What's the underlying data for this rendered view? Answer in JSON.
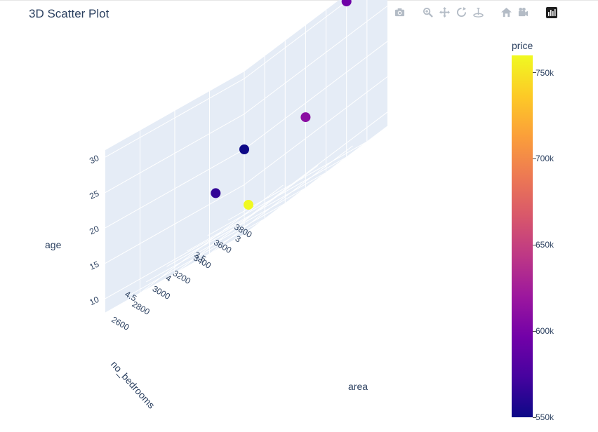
{
  "page": {
    "title": "3D Scatter Plot"
  },
  "modebar": {
    "buttons": [
      "camera-icon",
      "zoom-icon",
      "pan-icon",
      "orbit-rotation-icon",
      "turntable-rotation-icon",
      "reset-camera-icon",
      "camera-view-icon"
    ],
    "logo": "plotly-logo-icon"
  },
  "chart_data": {
    "type": "scatter3d",
    "title": "3D Scatter Plot",
    "x": {
      "label": "area",
      "ticks": [
        "2600",
        "2800",
        "3000",
        "3200",
        "3400",
        "3600",
        "3800"
      ],
      "range": [
        2600,
        4000
      ]
    },
    "y": {
      "label": "no_bedrooms",
      "ticks": [
        "3",
        "3.5",
        "4",
        "4.5"
      ],
      "range": [
        3,
        5
      ]
    },
    "z": {
      "label": "age",
      "ticks": [
        "10",
        "15",
        "20",
        "25",
        "30"
      ],
      "range": [
        8,
        31
      ]
    },
    "points": [
      {
        "area": 2600,
        "no_bedrooms": 3,
        "age": 20,
        "price": 550000
      },
      {
        "area": 3000,
        "no_bedrooms": 4,
        "age": 15,
        "price": 565000
      },
      {
        "area": 3200,
        "no_bedrooms": 3,
        "age": 18,
        "price": 610000
      },
      {
        "area": 3600,
        "no_bedrooms": 3,
        "age": 30,
        "price": 595000
      },
      {
        "area": 4000,
        "no_bedrooms": 5,
        "age": 8,
        "price": 760000
      }
    ],
    "colorbar": {
      "title": "price",
      "range": [
        550000,
        760000
      ],
      "tick_values": [
        550000,
        600000,
        650000,
        700000,
        750000
      ],
      "tick_labels": [
        "550k",
        "600k",
        "650k",
        "700k",
        "750k"
      ],
      "colorscale": "plasma"
    },
    "grid": true,
    "background_color": "#e5ecf6"
  }
}
